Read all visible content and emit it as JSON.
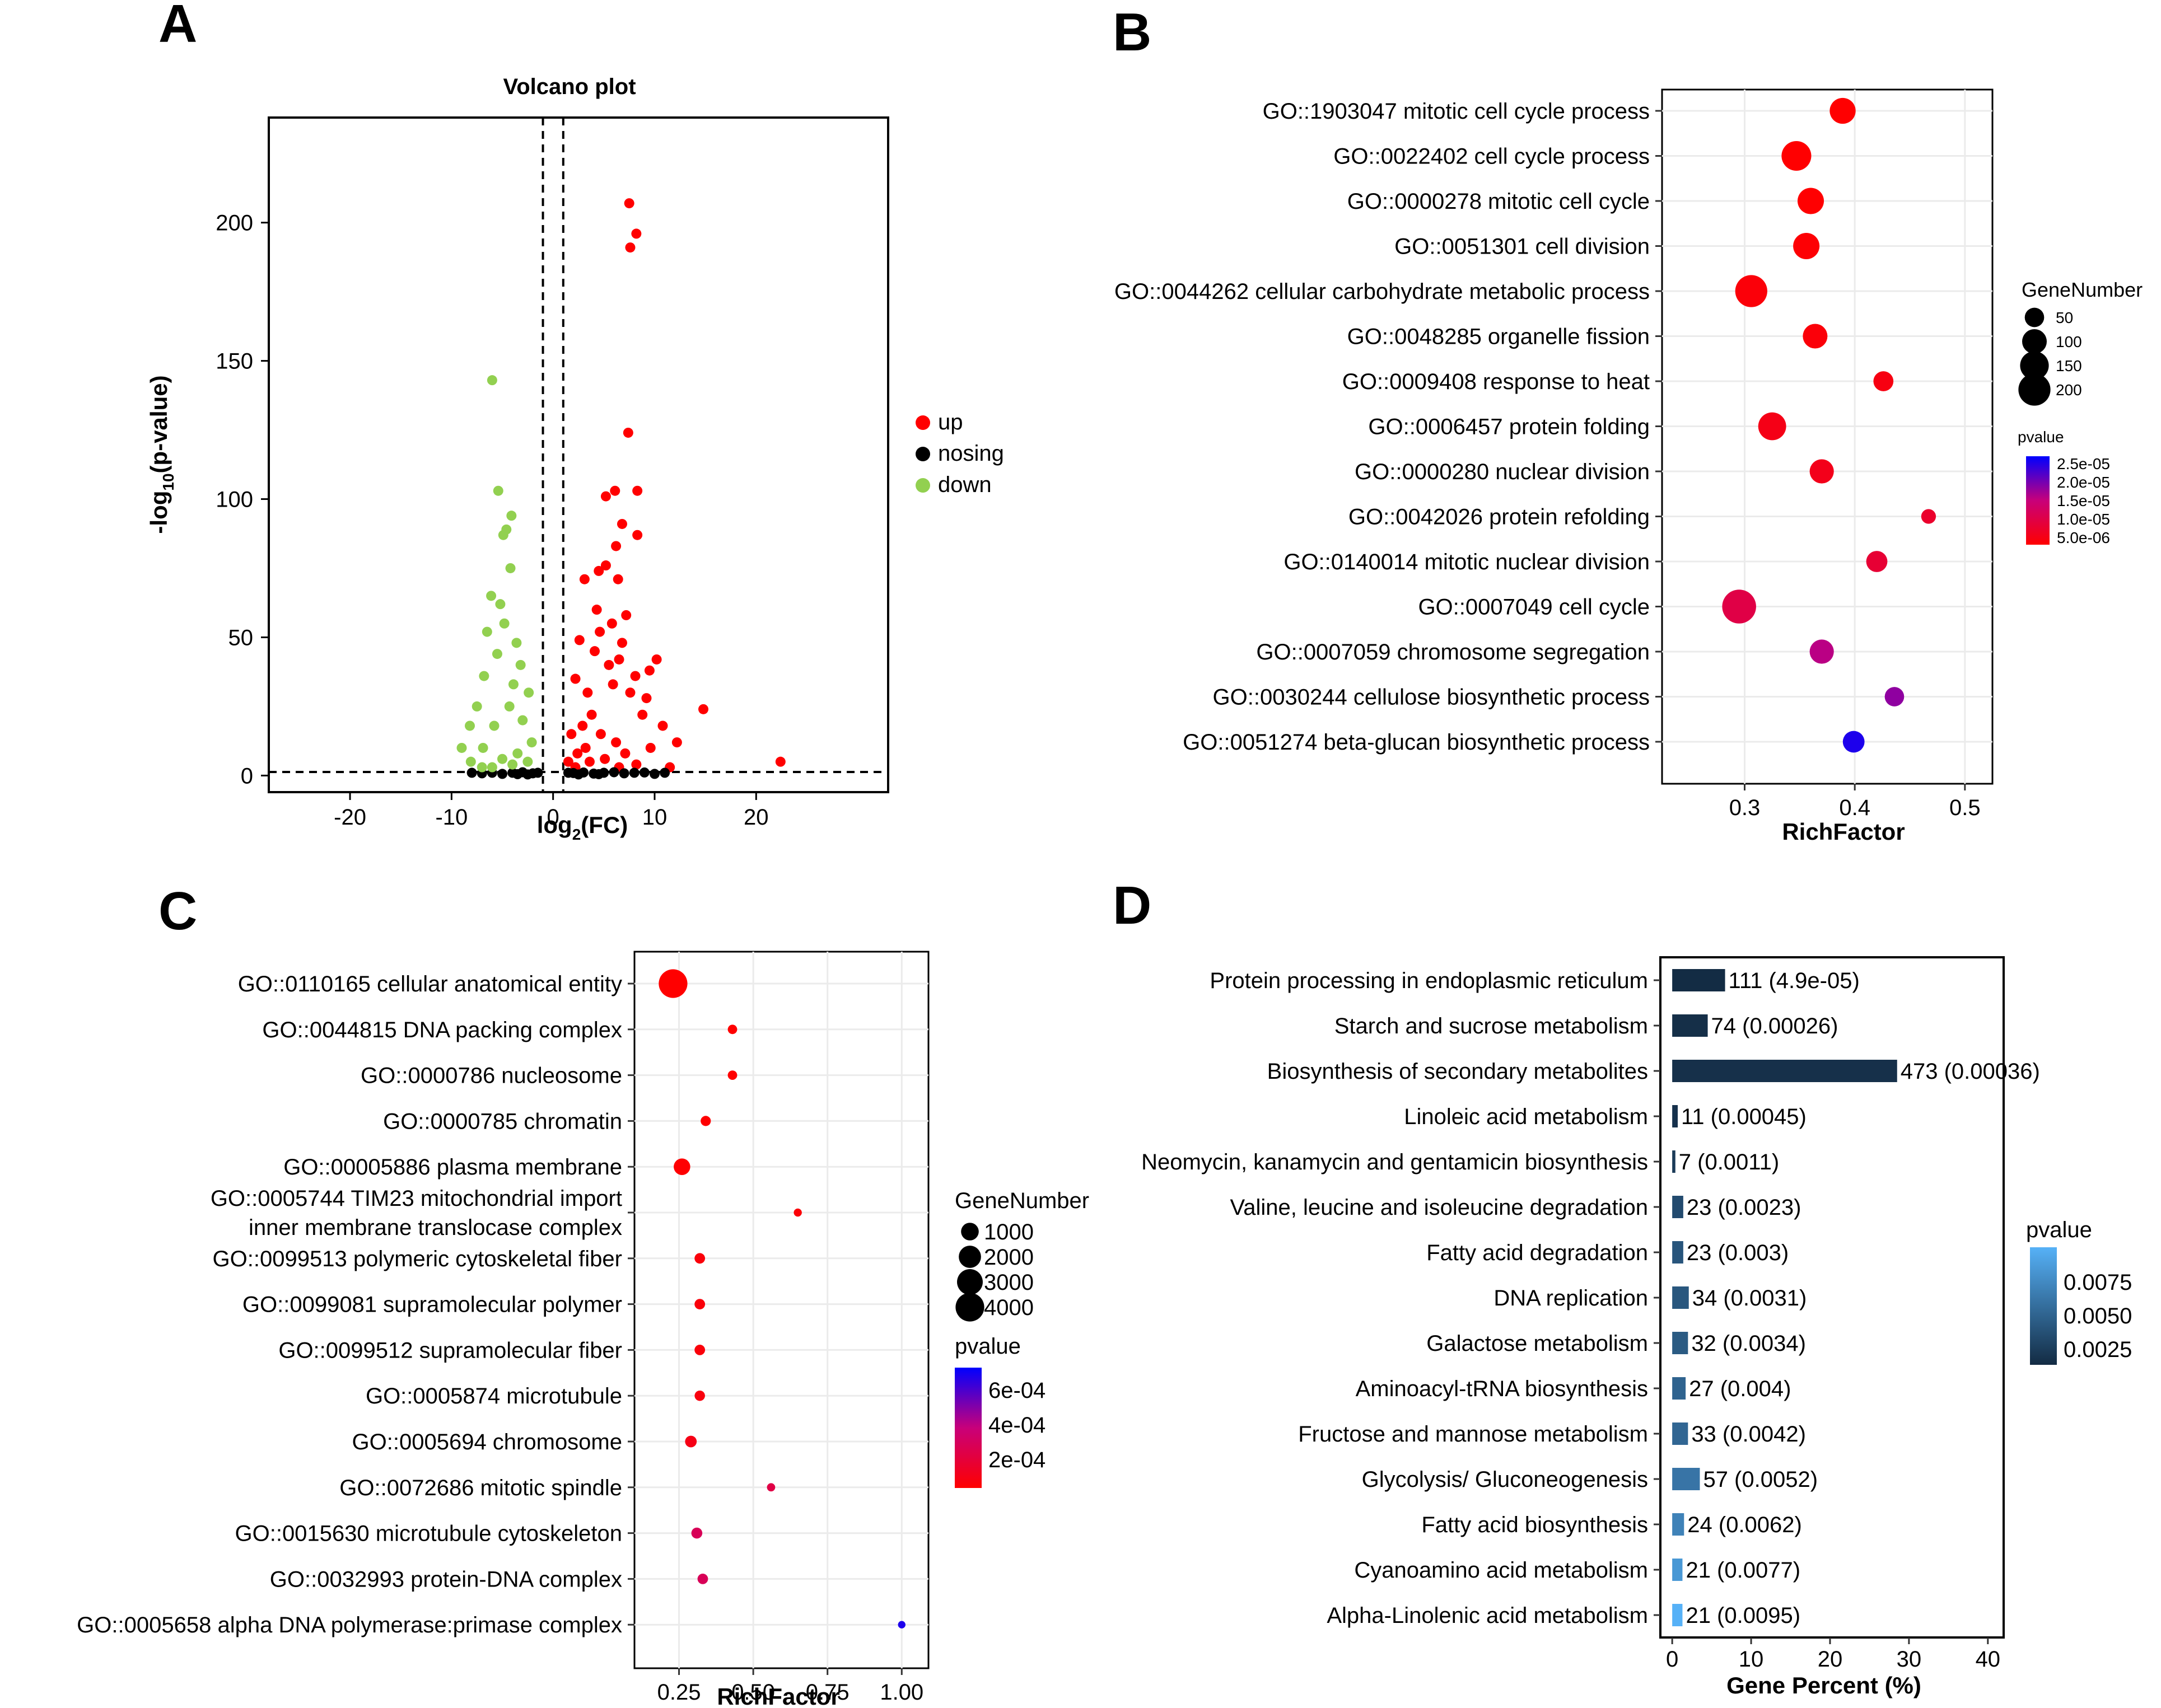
{
  "colors": {
    "up": "#ff0000",
    "nosing": "#000000",
    "down": "#92d050",
    "grid": "#ebebeb",
    "dashed": "#000000",
    "barDark": "#132b43",
    "barLight": "#56b1f7",
    "pvalLow": "#ff0000",
    "pvalHigh": "#0000ff"
  },
  "chart_data": [
    {
      "panel": "A",
      "type": "scatter",
      "title": "Volcano plot",
      "xlabel_base": "log",
      "xlabel_sub": "2",
      "xlabel_rest": "(FC)",
      "ylabel_pre": "-log",
      "ylabel_sub": "10",
      "ylabel_rest": "(p-value)",
      "xlim": [
        -28,
        33
      ],
      "ylim": [
        -6,
        238
      ],
      "xticks": [
        -20,
        -10,
        0,
        10,
        20
      ],
      "yticks": [
        0,
        50,
        100,
        150,
        200
      ],
      "thresholds": {
        "x": [
          -1,
          1
        ],
        "y": 1.3
      },
      "legend": [
        "up",
        "nosing",
        "down"
      ],
      "series": [
        {
          "name": "up",
          "points": [
            [
              7.5,
              207
            ],
            [
              8.2,
              196
            ],
            [
              7.6,
              191
            ],
            [
              7.4,
              124
            ],
            [
              6.1,
              103
            ],
            [
              5.2,
              101
            ],
            [
              8.3,
              103
            ],
            [
              6.8,
              91
            ],
            [
              8.3,
              87
            ],
            [
              6.2,
              83
            ],
            [
              5.2,
              76
            ],
            [
              6.4,
              71
            ],
            [
              4.5,
              74
            ],
            [
              3.1,
              71
            ],
            [
              4.3,
              60
            ],
            [
              7.2,
              58
            ],
            [
              5.8,
              55
            ],
            [
              2.6,
              49
            ],
            [
              10.2,
              42
            ],
            [
              4.6,
              52
            ],
            [
              9.5,
              38
            ],
            [
              14.8,
              24
            ],
            [
              22.4,
              5
            ],
            [
              11.5,
              3
            ],
            [
              6.8,
              48
            ],
            [
              5.5,
              40
            ],
            [
              8.1,
              36
            ],
            [
              3.4,
              30
            ],
            [
              9.2,
              28
            ],
            [
              2.2,
              35
            ],
            [
              6.5,
              42
            ],
            [
              4.1,
              45
            ],
            [
              5.9,
              33
            ],
            [
              7.6,
              30
            ],
            [
              3.8,
              22
            ],
            [
              2.9,
              18
            ],
            [
              8.8,
              22
            ],
            [
              10.8,
              18
            ],
            [
              4.7,
              15
            ],
            [
              6.2,
              12
            ],
            [
              3.2,
              10
            ],
            [
              1.8,
              15
            ],
            [
              2.4,
              8
            ],
            [
              9.6,
              10
            ],
            [
              12.2,
              12
            ],
            [
              5.1,
              6
            ],
            [
              7.1,
              8
            ],
            [
              3.6,
              5
            ],
            [
              1.5,
              5
            ],
            [
              8.2,
              4
            ],
            [
              2.2,
              3
            ],
            [
              6.5,
              3
            ]
          ]
        },
        {
          "name": "nosing",
          "points": [
            [
              -8,
              1
            ],
            [
              -7,
              0.8
            ],
            [
              -6,
              1
            ],
            [
              -5,
              0.6
            ],
            [
              -4,
              1
            ],
            [
              -3,
              1.2
            ],
            [
              -2,
              0.8
            ],
            [
              -1.5,
              1
            ],
            [
              1.5,
              1
            ],
            [
              2,
              0.9
            ],
            [
              3,
              1.1
            ],
            [
              4,
              0.7
            ],
            [
              5,
              1
            ],
            [
              6,
              1.2
            ],
            [
              7,
              0.8
            ],
            [
              8,
              1
            ],
            [
              9,
              1.1
            ],
            [
              10,
              0.6
            ],
            [
              11,
              1
            ],
            [
              -3.5,
              0.5
            ],
            [
              4.5,
              0.5
            ],
            [
              2.5,
              0.4
            ],
            [
              -2.5,
              0.4
            ]
          ]
        },
        {
          "name": "down",
          "points": [
            [
              -6,
              143
            ],
            [
              -5.4,
              103
            ],
            [
              -4.1,
              94
            ],
            [
              -4.6,
              89
            ],
            [
              -4.9,
              87
            ],
            [
              -4.2,
              75
            ],
            [
              -6.1,
              65
            ],
            [
              -5.2,
              62
            ],
            [
              -6.5,
              52
            ],
            [
              -4.8,
              55
            ],
            [
              -3.6,
              48
            ],
            [
              -5.5,
              44
            ],
            [
              -3.2,
              40
            ],
            [
              -6.8,
              36
            ],
            [
              -3.9,
              33
            ],
            [
              -7.5,
              25
            ],
            [
              -8.2,
              18
            ],
            [
              -9,
              10
            ],
            [
              -2.4,
              30
            ],
            [
              -3,
              20
            ],
            [
              -4.3,
              25
            ],
            [
              -5.8,
              18
            ],
            [
              -2.1,
              12
            ],
            [
              -6.9,
              10
            ],
            [
              -3.5,
              8
            ],
            [
              -5,
              6
            ],
            [
              -8.1,
              5
            ],
            [
              -2.5,
              5
            ],
            [
              -4,
              4
            ],
            [
              -7,
              3
            ],
            [
              -6,
              3
            ]
          ]
        }
      ]
    },
    {
      "panel": "B",
      "type": "scatter",
      "xlabel": "RichFactor",
      "xlim": [
        0.225,
        0.525
      ],
      "xticks": [
        0.3,
        0.4,
        0.5
      ],
      "xtick_labels": [
        "0.3",
        "0.4",
        "0.5"
      ],
      "size_legend_title": "GeneNumber",
      "size_legend": [
        50,
        100,
        150,
        200
      ],
      "color_legend_title": "pvalue",
      "color_legend_ticks": [
        "2.5e-05",
        "2.0e-05",
        "1.5e-05",
        "1.0e-05",
        "5.0e-06"
      ],
      "terms": [
        {
          "label": "GO::1903047 mitotic cell cycle process",
          "rich": 0.389,
          "genes": 115,
          "pvalue": 1e-07
        },
        {
          "label": "GO::0022402 cell cycle process",
          "rich": 0.347,
          "genes": 165,
          "pvalue": 1e-07
        },
        {
          "label": "GO::0000278 mitotic cell cycle",
          "rich": 0.36,
          "genes": 120,
          "pvalue": 1e-07
        },
        {
          "label": "GO::0051301 cell division",
          "rich": 0.356,
          "genes": 120,
          "pvalue": 5e-07
        },
        {
          "label": "GO::0044262 cellular carbohydrate metabolic process",
          "rich": 0.306,
          "genes": 200,
          "pvalue": 1e-06
        },
        {
          "label": "GO::0048285 organelle fission",
          "rich": 0.364,
          "genes": 100,
          "pvalue": 1e-06
        },
        {
          "label": "GO::0009408 response to heat",
          "rich": 0.426,
          "genes": 55,
          "pvalue": 2e-06
        },
        {
          "label": "GO::0006457 protein folding",
          "rich": 0.325,
          "genes": 140,
          "pvalue": 2.5e-06
        },
        {
          "label": "GO::0000280 nuclear division",
          "rich": 0.37,
          "genes": 95,
          "pvalue": 3e-06
        },
        {
          "label": "GO::0042026 protein refolding",
          "rich": 0.467,
          "genes": 20,
          "pvalue": 5e-06
        },
        {
          "label": "GO::0140014 mitotic nuclear division",
          "rich": 0.42,
          "genes": 65,
          "pvalue": 6e-06
        },
        {
          "label": "GO::0007049 cell cycle",
          "rich": 0.295,
          "genes": 230,
          "pvalue": 8e-06
        },
        {
          "label": "GO::0007059 chromosome segregation",
          "rich": 0.37,
          "genes": 95,
          "pvalue": 1.5e-05
        },
        {
          "label": "GO::0030244 cellulose biosynthetic process",
          "rich": 0.436,
          "genes": 50,
          "pvalue": 1.8e-05
        },
        {
          "label": "GO::0051274 beta-glucan biosynthetic process",
          "rich": 0.399,
          "genes": 70,
          "pvalue": 2.6e-05
        }
      ]
    },
    {
      "panel": "C",
      "type": "scatter",
      "xlabel": "RichFactor",
      "xlim": [
        0.1,
        1.09
      ],
      "xticks": [
        0.25,
        0.5,
        0.75,
        1.0
      ],
      "xtick_labels": [
        "0.25",
        "0.50",
        "0.75",
        "1.00"
      ],
      "size_legend_title": "GeneNumber",
      "size_legend": [
        1000,
        2000,
        3000,
        4000
      ],
      "color_legend_title": "pvalue",
      "color_legend_ticks": [
        "6e-04",
        "4e-04",
        "2e-04"
      ],
      "terms": [
        {
          "label": "GO::0110165 cellular anatomical entity",
          "rich": 0.23,
          "genes": 4000,
          "pvalue": 1e-08
        },
        {
          "label": "GO::0044815 DNA packing complex",
          "rich": 0.43,
          "genes": 60,
          "pvalue": 1e-06
        },
        {
          "label": "GO::0000786 nucleosome",
          "rich": 0.43,
          "genes": 60,
          "pvalue": 1e-06
        },
        {
          "label": "GO::0000785 chromatin",
          "rich": 0.34,
          "genes": 100,
          "pvalue": 2e-06
        },
        {
          "label": "GO::00005886 plasma membrane",
          "rich": 0.26,
          "genes": 800,
          "pvalue": 5e-06
        },
        {
          "label": "GO::0005744 TIM23 mitochondrial import\ninner membrane translocase complex",
          "rich": 0.65,
          "genes": 15,
          "pvalue": 2e-05
        },
        {
          "label": "GO::0099513 polymeric cytoskeletal fiber",
          "rich": 0.32,
          "genes": 120,
          "pvalue": 3e-05
        },
        {
          "label": "GO::0099081 supramolecular polymer",
          "rich": 0.32,
          "genes": 120,
          "pvalue": 3e-05
        },
        {
          "label": "GO::0099512 supramolecular fiber",
          "rich": 0.32,
          "genes": 120,
          "pvalue": 3e-05
        },
        {
          "label": "GO::0005874 microtubule",
          "rich": 0.32,
          "genes": 110,
          "pvalue": 4e-05
        },
        {
          "label": "GO::0005694 chromosome",
          "rich": 0.29,
          "genes": 200,
          "pvalue": 6e-05
        },
        {
          "label": "GO::0072686 mitotic spindle",
          "rich": 0.56,
          "genes": 20,
          "pvalue": 0.0002
        },
        {
          "label": "GO::0015630 microtubule cytoskeleton",
          "rich": 0.31,
          "genes": 150,
          "pvalue": 0.00025
        },
        {
          "label": "GO::0032993 protein-DNA complex",
          "rich": 0.33,
          "genes": 120,
          "pvalue": 0.00025
        },
        {
          "label": "GO::0005658 alpha DNA polymerase:primase complex",
          "rich": 1.0,
          "genes": 5,
          "pvalue": 0.00065
        }
      ]
    },
    {
      "panel": "D",
      "type": "bar",
      "orientation": "horizontal",
      "xlabel": "Gene Percent (%)",
      "xlim": [
        -1.5,
        42
      ],
      "xticks": [
        0,
        10,
        20,
        30,
        40
      ],
      "color_legend_title": "pvalue",
      "color_legend_ticks": [
        "0.0075",
        "0.0050",
        "0.0025"
      ],
      "pmax": 0.0095,
      "bars": [
        {
          "label": "Protein processing in endoplasmic reticulum",
          "percent": 6.7,
          "count_label": "111 (4.9e-05)",
          "pvalue": 4.9e-05
        },
        {
          "label": "Starch and sucrose metabolism",
          "percent": 4.5,
          "count_label": "74 (0.00026)",
          "pvalue": 0.00026
        },
        {
          "label": "Biosynthesis of secondary metabolites",
          "percent": 28.5,
          "count_label": "473 (0.00036)",
          "pvalue": 0.00036
        },
        {
          "label": "Linoleic acid metabolism",
          "percent": 0.7,
          "count_label": "11 (0.00045)",
          "pvalue": 0.00045
        },
        {
          "label": "Neomycin, kanamycin and gentamicin biosynthesis",
          "percent": 0.4,
          "count_label": "7 (0.0011)",
          "pvalue": 0.0011
        },
        {
          "label": "Valine, leucine and isoleucine degradation",
          "percent": 1.4,
          "count_label": "23 (0.0023)",
          "pvalue": 0.0023
        },
        {
          "label": "Fatty acid degradation",
          "percent": 1.4,
          "count_label": "23 (0.003)",
          "pvalue": 0.003
        },
        {
          "label": "DNA replication",
          "percent": 2.1,
          "count_label": "34 (0.0031)",
          "pvalue": 0.0031
        },
        {
          "label": "Galactose metabolism",
          "percent": 2.0,
          "count_label": "32 (0.0034)",
          "pvalue": 0.0034
        },
        {
          "label": "Aminoacyl-tRNA biosynthesis",
          "percent": 1.7,
          "count_label": "27 (0.004)",
          "pvalue": 0.004
        },
        {
          "label": "Fructose and mannose metabolism",
          "percent": 2.0,
          "count_label": "33 (0.0042)",
          "pvalue": 0.0042
        },
        {
          "label": "Glycolysis/ Gluconeogenesis",
          "percent": 3.5,
          "count_label": "57 (0.0052)",
          "pvalue": 0.0052
        },
        {
          "label": "Fatty acid biosynthesis",
          "percent": 1.5,
          "count_label": "24 (0.0062)",
          "pvalue": 0.0062
        },
        {
          "label": "Cyanoamino acid metabolism",
          "percent": 1.3,
          "count_label": "21 (0.0077)",
          "pvalue": 0.0077
        },
        {
          "label": "Alpha-Linolenic acid metabolism",
          "percent": 1.3,
          "count_label": "21 (0.0095)",
          "pvalue": 0.0095
        }
      ]
    }
  ]
}
